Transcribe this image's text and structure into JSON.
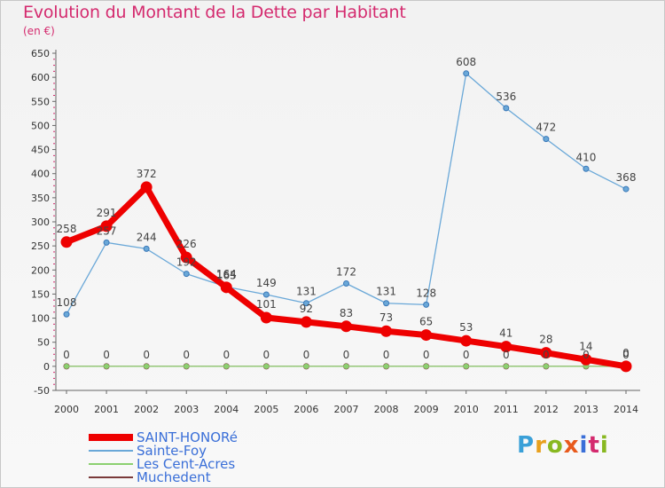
{
  "title": "Evolution du Montant de la Dette par Habitant",
  "subtitle": "(en €)",
  "logo": {
    "text": "Proxiti",
    "colors": [
      "#3aa0d8",
      "#e8a01c",
      "#88b820",
      "#e85a1c",
      "#3a6fd8",
      "#d42a6e",
      "#88b820"
    ]
  },
  "colors": {
    "title": "#d42a6e",
    "legend_text": "#3a6fd8",
    "axis": "#333333",
    "grid": "#e0e0e0"
  },
  "chart_data": {
    "type": "line",
    "title": "Evolution du Montant de la Dette par Habitant",
    "ylabel": "(en €)",
    "xlabel": "",
    "x": [
      "2000",
      "2001",
      "2002",
      "2003",
      "2004",
      "2005",
      "2006",
      "2007",
      "2008",
      "2009",
      "2010",
      "2011",
      "2012",
      "2013",
      "2014"
    ],
    "ylim": [
      -50,
      650
    ],
    "yticks": [
      "-50",
      "0",
      "50",
      "100",
      "150",
      "200",
      "250",
      "300",
      "350",
      "400",
      "450",
      "500",
      "550",
      "600",
      "650"
    ],
    "series": [
      {
        "name": "SAINT-HONORé",
        "color": "#ee0000",
        "values": [
          258,
          291,
          372,
          226,
          164,
          101,
          92,
          83,
          73,
          65,
          53,
          41,
          28,
          14,
          0
        ],
        "labels": [
          "258",
          "291",
          "372",
          "226",
          "164",
          "101",
          "92",
          "83",
          "73",
          "65",
          "53",
          "41",
          "28",
          "14",
          "0"
        ]
      },
      {
        "name": "Sainte-Foy",
        "color": "#6aa8d8",
        "values": [
          108,
          257,
          244,
          192,
          165,
          149,
          131,
          172,
          131,
          128,
          608,
          536,
          472,
          410,
          368
        ],
        "labels": [
          "108",
          "257",
          "244",
          "192",
          "165",
          "149",
          "131",
          "172",
          "131",
          "128",
          "608",
          "536",
          "472",
          "410",
          "368"
        ]
      },
      {
        "name": "Les Cent-Acres",
        "color": "#8cd070",
        "values": [
          0,
          0,
          0,
          0,
          0,
          0,
          0,
          0,
          0,
          0,
          0,
          0,
          0,
          0,
          0
        ],
        "labels": [
          "0",
          "0",
          "0",
          "0",
          "0",
          "0",
          "0",
          "0",
          "0",
          "0",
          "0",
          "0",
          "0",
          "0",
          "0"
        ]
      },
      {
        "name": "Muchedent",
        "color": "#7a3a3a",
        "values": [
          0,
          0,
          0,
          0,
          0,
          0,
          0,
          0,
          0,
          0,
          0,
          0,
          0,
          0,
          0
        ],
        "labels": []
      }
    ],
    "legend_position": "bottom-left",
    "grid": false
  }
}
